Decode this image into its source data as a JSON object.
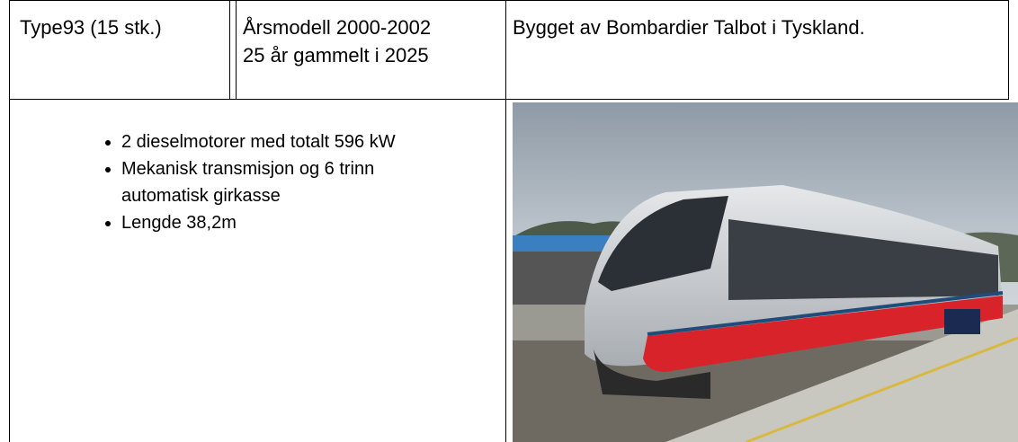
{
  "header": {
    "model": "Type93 (15 stk.)",
    "year": "Årsmodell 2000-2002",
    "age": "25 år gammelt i 2025",
    "builder": "Bygget av Bombardier Talbot i Tyskland."
  },
  "specs": [
    "2 dieselmotorer med totalt 596 kW",
    "Mekanisk transmisjon og 6 trinn automatisk girkasse",
    "Lengde 38,2m"
  ]
}
